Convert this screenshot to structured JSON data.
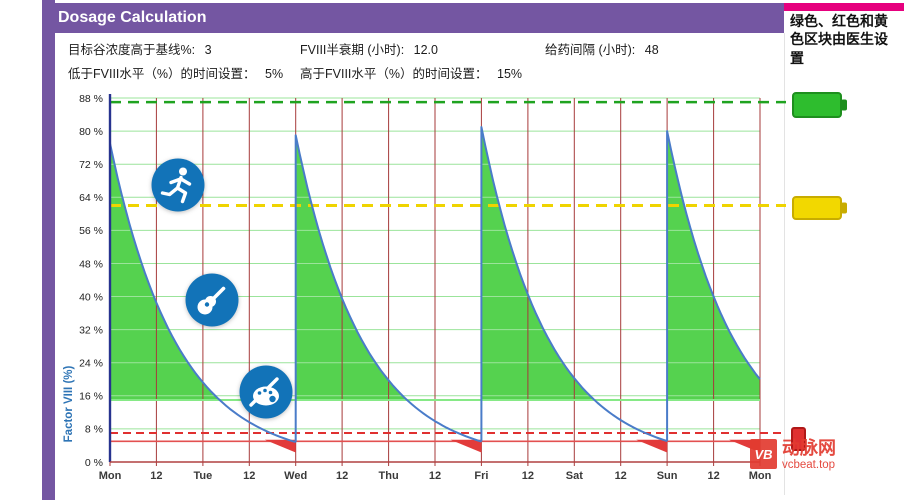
{
  "header": {
    "title": "Dosage Calculation"
  },
  "side_note": "绿色、红色和黄色区块由医生设置",
  "params": [
    {
      "label": "目标谷浓度高于基线%:",
      "value": "3"
    },
    {
      "label": "FVIII半衰期 (小时):",
      "value": "12.0"
    },
    {
      "label": "给药间隔 (小时):",
      "value": "48"
    },
    {
      "label": "低于FVIII水平（%）的时间设置：",
      "value": "5%"
    },
    {
      "label": "高于FVIII水平（%）的时间设置：",
      "value": "15%"
    }
  ],
  "activity_icons": [
    "running",
    "guitar",
    "painting"
  ],
  "watermark": {
    "logo": "VB",
    "name": "动脉网",
    "site": "vcbeat.top"
  },
  "chart_data": {
    "type": "line",
    "title": "FVIII concentration decay curves over one week with dosing every 48 hours",
    "ylabel": "Factor VIII (%)",
    "xlabel": "",
    "ylim": [
      0,
      88
    ],
    "xlim_hours": [
      0,
      168
    ],
    "y_ticks": [
      "0 %",
      "8 %",
      "16 %",
      "24 %",
      "32 %",
      "40 %",
      "48 %",
      "56 %",
      "64 %",
      "72 %",
      "80 %",
      "88 %"
    ],
    "x_ticks": [
      "Mon",
      "12",
      "Tue",
      "12",
      "Wed",
      "12",
      "Thu",
      "12",
      "Fri",
      "12",
      "Sat",
      "12",
      "Sun",
      "12",
      "Mon"
    ],
    "half_life_hours": 12,
    "dose_interval_hours": 48,
    "doses": [
      {
        "t": 0,
        "peak": 77
      },
      {
        "t": 48,
        "peak": 79
      },
      {
        "t": 96,
        "peak": 81
      },
      {
        "t": 144,
        "peak": 80
      }
    ],
    "thresholds": {
      "green_dashed": 87,
      "yellow_dashed": 62,
      "red_dashed": 7,
      "green_solid": 15,
      "red_solid": 5
    },
    "red_regions_hours": [
      [
        40,
        48
      ],
      [
        88,
        96
      ],
      [
        136,
        144
      ],
      [
        160,
        168
      ]
    ],
    "grid": {
      "x_step_hours": 12,
      "y_step_percent": 8,
      "grid_on": true
    },
    "legend_position": "right"
  },
  "colors": {
    "header_purple": "#7456A2",
    "accent_pink": "#E6007E",
    "curve_blue": "#4A7CC9",
    "fill_green": "#55D24F",
    "wedge_red": "#E23B3B",
    "grid_green": "#9BE49B",
    "grid_red": "#A63A3A",
    "dash_green": "#1FA320",
    "dash_yellow": "#EFD400",
    "dash_red": "#E03030",
    "solid_green_line": "#86E986",
    "solid_red_line": "#E35050",
    "axis_blue": "#27338F",
    "axis_red": "#B04040",
    "icon_blue": "#1273B8",
    "legend_green": "#2EBD2E",
    "legend_green_border": "#1E8F1E",
    "legend_yellow": "#F2D800",
    "legend_yellow_border": "#C8AC00",
    "legend_red": "#E03030",
    "legend_red_border": "#B01818",
    "label_color": "#222222",
    "ylabel_blue": "#2E74B5",
    "watermark_red": "#E23B30"
  }
}
